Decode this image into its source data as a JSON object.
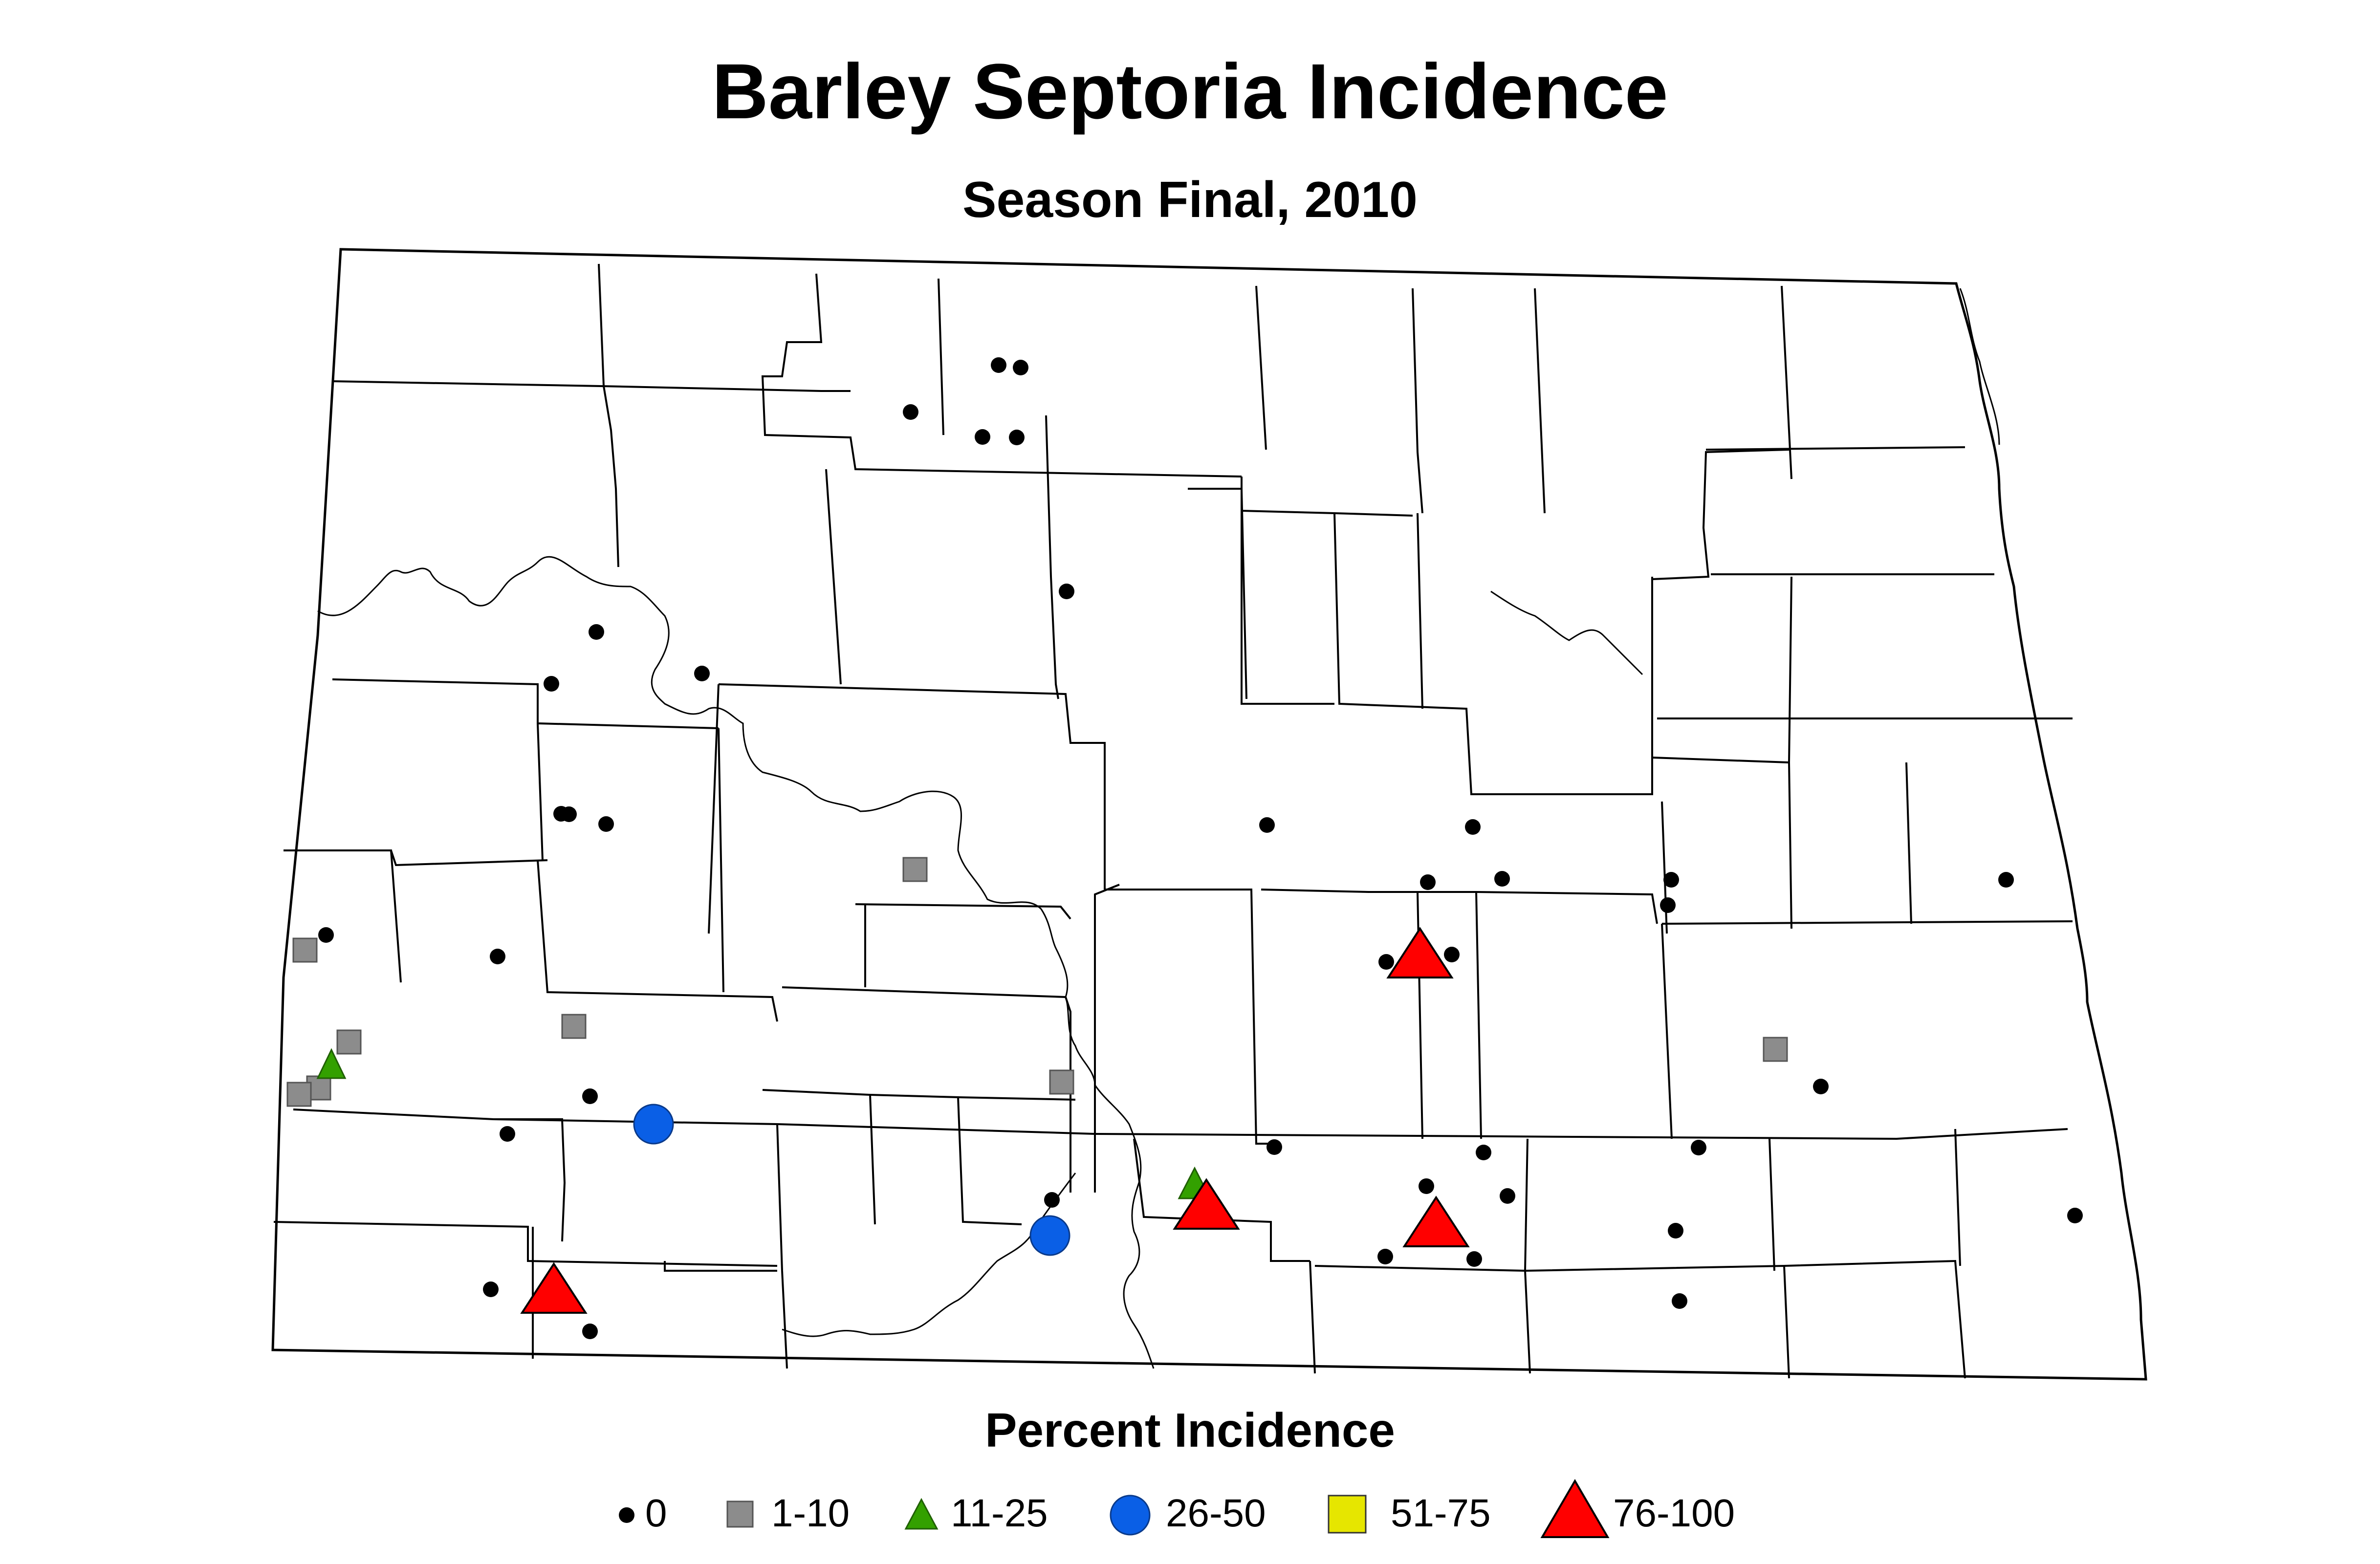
{
  "title": "Barley Septoria Incidence",
  "subtitle": "Season Final, 2010",
  "legend": {
    "title": "Percent Incidence",
    "classes": [
      {
        "label": "0",
        "symbol": "small-dot",
        "color": "#000000"
      },
      {
        "label": "1-10",
        "symbol": "square",
        "color": "#8c8c8c"
      },
      {
        "label": "11-25",
        "symbol": "small-triangle",
        "color": "#33a000"
      },
      {
        "label": "26-50",
        "symbol": "circle",
        "color": "#0a5fe6"
      },
      {
        "label": "51-75",
        "symbol": "square",
        "color": "#e6e600"
      },
      {
        "label": "76-100",
        "symbol": "large-triangle",
        "color": "#ff0000"
      }
    ]
  },
  "colors": {
    "county_fill": "#ffffff",
    "county_stroke": "#000000"
  }
}
